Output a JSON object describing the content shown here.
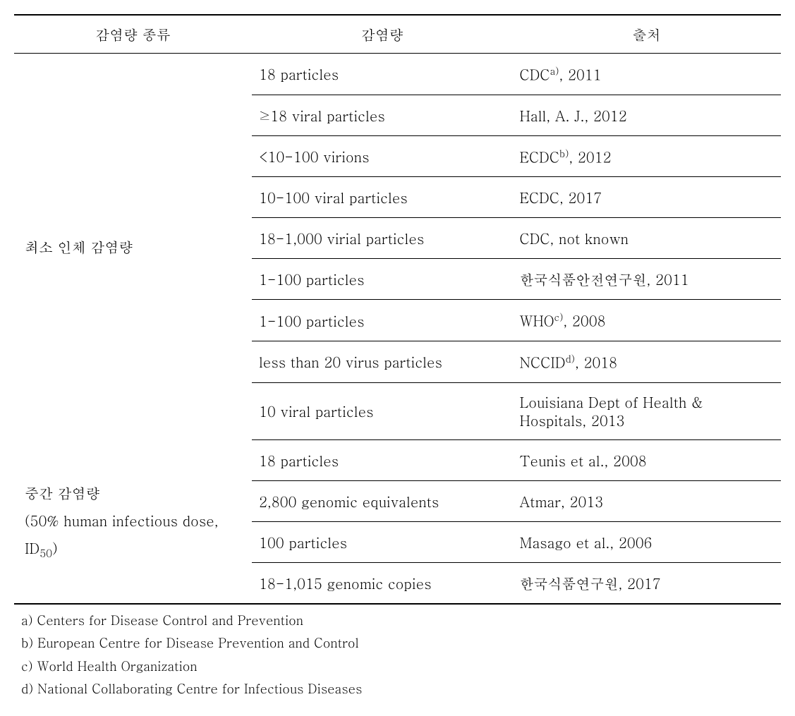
{
  "headers": {
    "col1": "감염량 종류",
    "col2": "감염량",
    "col3": "출처"
  },
  "section1": {
    "category": "최소 인체 감염량",
    "rows": [
      {
        "dose": "18 particles",
        "source_prefix": "CDC",
        "source_sup": "a)",
        "source_suffix": ", 2011"
      },
      {
        "dose": "≥18 viral particles",
        "source_prefix": "Hall, A. J., 2012",
        "source_sup": "",
        "source_suffix": ""
      },
      {
        "dose": "<10-100 virions",
        "source_prefix": "ECDC",
        "source_sup": "b)",
        "source_suffix": ", 2012"
      },
      {
        "dose": "10-100 viral particles",
        "source_prefix": "ECDC, 2017",
        "source_sup": "",
        "source_suffix": ""
      },
      {
        "dose": "18-1,000 virial particles",
        "source_prefix": "CDC, not known",
        "source_sup": "",
        "source_suffix": ""
      },
      {
        "dose": "1-100 particles",
        "source_prefix": "한국식품안전연구원, 2011",
        "source_sup": "",
        "source_suffix": ""
      },
      {
        "dose": "1-100 particles",
        "source_prefix": "WHO",
        "source_sup": "c)",
        "source_suffix": ", 2008"
      },
      {
        "dose": "less than 20 virus particles",
        "source_prefix": "NCCID",
        "source_sup": "d)",
        "source_suffix": ", 2018"
      },
      {
        "dose": "10 viral particles",
        "source_prefix": "Louisiana Dept of Health & Hospitals, 2013",
        "source_sup": "",
        "source_suffix": ""
      }
    ]
  },
  "section2": {
    "category_line1": "중간 감염량",
    "category_line2a": "(50% human infectious dose,",
    "category_line3a": "ID",
    "category_line3_sub": "50",
    "category_line3b": ")",
    "rows": [
      {
        "dose": "18 particles",
        "source": "Teunis et al., 2008"
      },
      {
        "dose": "2,800 genomic equivalents",
        "source": "Atmar, 2013"
      },
      {
        "dose": "100 particles",
        "source": "Masago et al., 2006"
      },
      {
        "dose": "18-1,015 genomic copies",
        "source": "한국식품연구원, 2017"
      }
    ]
  },
  "footnotes": {
    "a": "a) Centers for Disease Control and Prevention",
    "b": "b) European Centre for Disease Prevention and Control",
    "c": "c) World Health Organization",
    "d": "d) National Collaborating Centre for Infectious Diseases"
  }
}
